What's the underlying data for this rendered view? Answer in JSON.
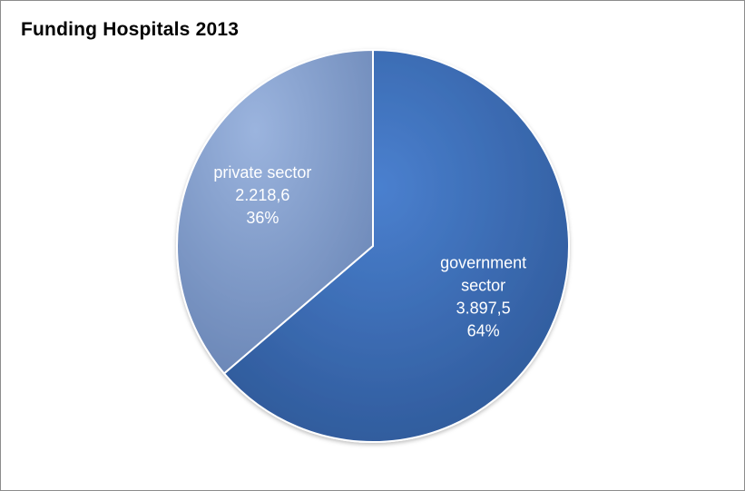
{
  "chart_data": {
    "type": "pie",
    "title": "Funding Hospitals 2013",
    "slices": [
      {
        "label": "government sector",
        "label_lines": [
          "government",
          "sector"
        ],
        "value": 3897.5,
        "value_text": "3.897,5",
        "percent_text": "64%",
        "color": "#3a6bb0"
      },
      {
        "label": "private sector",
        "label_lines": [
          "private sector"
        ],
        "value": 2218.6,
        "value_text": "2.218,6",
        "percent_text": "36%",
        "color": "#7f9ccc"
      }
    ],
    "start_angle": "12 o'clock",
    "direction": "clockwise",
    "legend": "none"
  }
}
